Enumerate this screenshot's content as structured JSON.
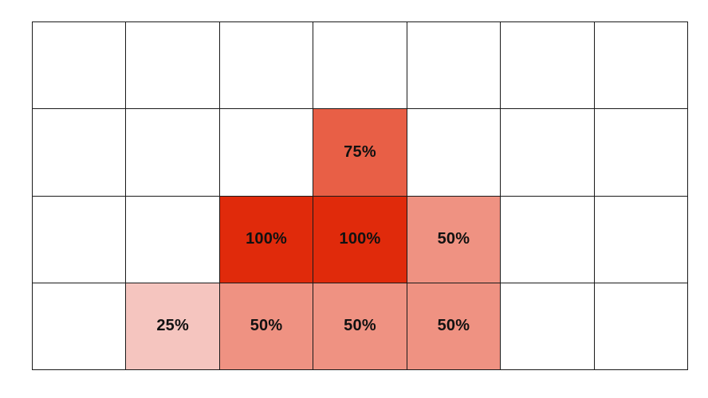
{
  "grid": {
    "rows": 4,
    "cols": 7,
    "line_color": "#1a1a1a",
    "empty_color": "#ffffff"
  },
  "level_colors": {
    "25": "#f5c5bf",
    "50": "#ef9282",
    "75": "#e85f46",
    "100": "#e02a0b"
  },
  "filled_cells": [
    {
      "row": 1,
      "col": 3,
      "value": 75,
      "label": "75%"
    },
    {
      "row": 2,
      "col": 2,
      "value": 100,
      "label": "100%"
    },
    {
      "row": 2,
      "col": 3,
      "value": 100,
      "label": "100%"
    },
    {
      "row": 2,
      "col": 4,
      "value": 50,
      "label": "50%"
    },
    {
      "row": 3,
      "col": 1,
      "value": 25,
      "label": "25%"
    },
    {
      "row": 3,
      "col": 2,
      "value": 50,
      "label": "50%"
    },
    {
      "row": 3,
      "col": 3,
      "value": 50,
      "label": "50%"
    },
    {
      "row": 3,
      "col": 4,
      "value": 50,
      "label": "50%"
    }
  ]
}
